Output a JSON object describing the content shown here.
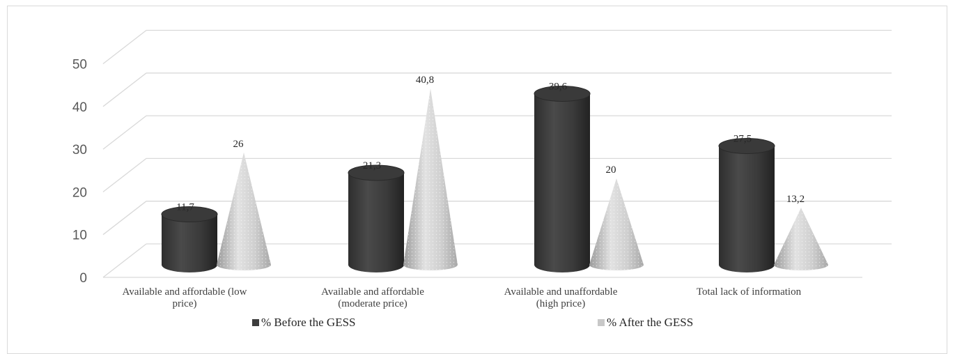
{
  "chart_data": {
    "type": "bar",
    "style": "3d-cylinder-and-cone",
    "categories": [
      [
        "Available and affordable (low",
        "price)"
      ],
      [
        "Available and affordable",
        "(moderate price)"
      ],
      [
        "Available and unaffordable",
        "(high price)"
      ],
      [
        "Total lack of information"
      ]
    ],
    "series": [
      {
        "name": "% Before the GESS",
        "shape": "cylinder",
        "color": "#3d3d3d",
        "values": [
          11.7,
          21.3,
          39.6,
          27.5
        ],
        "labels": [
          "11,7",
          "21,3",
          "39,6",
          "27,5"
        ]
      },
      {
        "name": "% After the GESS",
        "shape": "cone",
        "color": "#c8c8c8",
        "values": [
          26,
          40.8,
          20,
          13.2
        ],
        "labels": [
          "26",
          "40,8",
          "20",
          "13,2"
        ]
      }
    ],
    "ylim": [
      0,
      50
    ],
    "yticks": [
      "0",
      "10",
      "20",
      "30",
      "40",
      "50"
    ],
    "grid": true,
    "legend": "bottom"
  }
}
